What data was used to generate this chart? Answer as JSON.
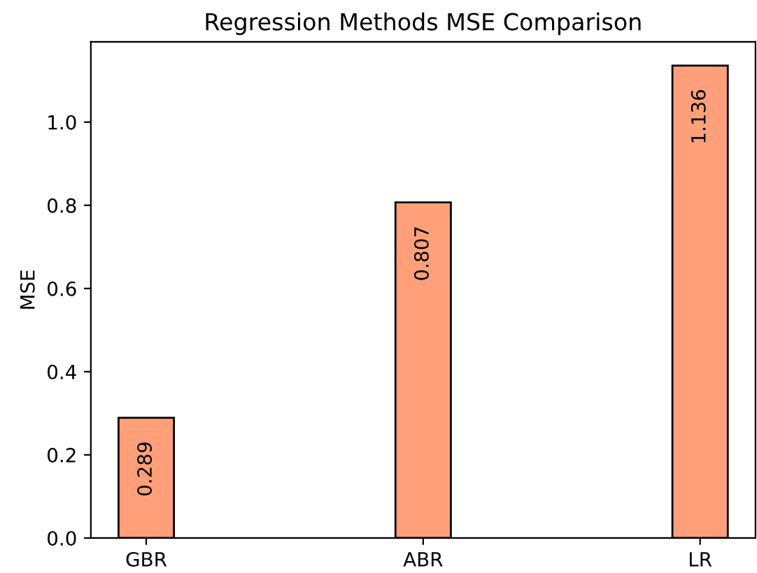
{
  "chart_data": {
    "type": "bar",
    "title": "Regression Methods MSE Comparison",
    "ylabel": "MSE",
    "categories": [
      "GBR",
      "ABR",
      "LR"
    ],
    "values": [
      0.289,
      0.807,
      1.136
    ],
    "color": "#ffa07a",
    "ylim": [
      0,
      1.193
    ],
    "yticks": [
      {
        "value": 0,
        "label": "0.0"
      },
      0.2,
      0.4,
      0.6,
      0.8,
      {
        "value": 1,
        "label": "1.0"
      }
    ],
    "data_labels": true,
    "grid": false
  }
}
